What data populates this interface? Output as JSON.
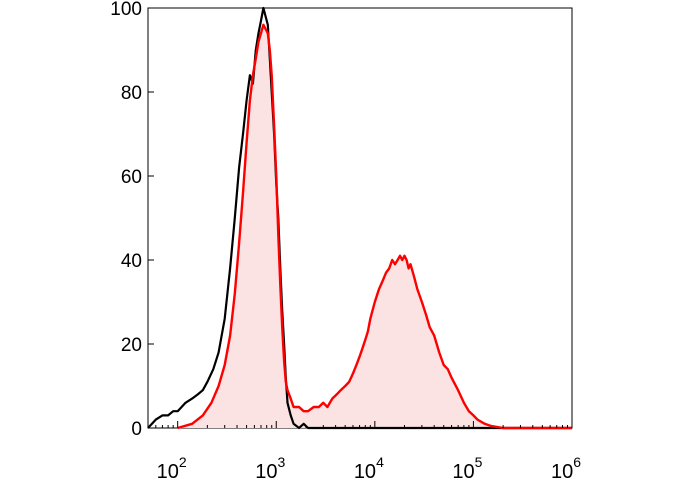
{
  "chart_data": {
    "type": "area",
    "title": "",
    "xlabel": "",
    "ylabel": "",
    "xscale": "log",
    "xlim": [
      50,
      1000000
    ],
    "ylim": [
      0,
      100
    ],
    "grid": false,
    "legend": "none",
    "y_ticks": [
      {
        "value": 0,
        "label": "0"
      },
      {
        "value": 20,
        "label": "20"
      },
      {
        "value": 40,
        "label": "40"
      },
      {
        "value": 60,
        "label": "60"
      },
      {
        "value": 80,
        "label": "80"
      },
      {
        "value": 100,
        "label": "100"
      }
    ],
    "x_ticks": [
      {
        "value": 100,
        "base": "10",
        "exp": "2"
      },
      {
        "value": 1000,
        "base": "10",
        "exp": "3"
      },
      {
        "value": 10000,
        "base": "10",
        "exp": "4"
      },
      {
        "value": 100000,
        "base": "10",
        "exp": "5"
      },
      {
        "value": 1000000,
        "base": "10",
        "exp": "6"
      }
    ],
    "series": [
      {
        "color": "#000000",
        "fill": null,
        "points": [
          [
            50,
            0
          ],
          [
            60,
            2
          ],
          [
            70,
            3
          ],
          [
            80,
            3
          ],
          [
            90,
            4
          ],
          [
            100,
            4
          ],
          [
            120,
            6
          ],
          [
            140,
            7
          ],
          [
            160,
            8
          ],
          [
            180,
            9
          ],
          [
            200,
            11
          ],
          [
            230,
            14
          ],
          [
            260,
            18
          ],
          [
            300,
            26
          ],
          [
            340,
            38
          ],
          [
            380,
            50
          ],
          [
            420,
            62
          ],
          [
            460,
            70
          ],
          [
            500,
            78
          ],
          [
            540,
            84
          ],
          [
            580,
            82
          ],
          [
            620,
            90
          ],
          [
            660,
            94
          ],
          [
            700,
            97
          ],
          [
            740,
            100
          ],
          [
            780,
            98
          ],
          [
            820,
            96
          ],
          [
            860,
            88
          ],
          [
            900,
            80
          ],
          [
            950,
            70
          ],
          [
            1000,
            58
          ],
          [
            1050,
            50
          ],
          [
            1100,
            38
          ],
          [
            1150,
            28
          ],
          [
            1200,
            20
          ],
          [
            1250,
            12
          ],
          [
            1300,
            6
          ],
          [
            1400,
            3
          ],
          [
            1500,
            1
          ],
          [
            1700,
            0
          ],
          [
            1900,
            1
          ],
          [
            2100,
            0
          ],
          [
            1000000,
            0
          ]
        ]
      },
      {
        "color": "#ff0000",
        "fill": "#fbe3e3",
        "points": [
          [
            100,
            0
          ],
          [
            140,
            1
          ],
          [
            180,
            3
          ],
          [
            220,
            6
          ],
          [
            260,
            10
          ],
          [
            300,
            15
          ],
          [
            340,
            22
          ],
          [
            380,
            32
          ],
          [
            420,
            44
          ],
          [
            460,
            56
          ],
          [
            500,
            68
          ],
          [
            540,
            78
          ],
          [
            580,
            84
          ],
          [
            620,
            88
          ],
          [
            660,
            92
          ],
          [
            700,
            94
          ],
          [
            740,
            96
          ],
          [
            780,
            95
          ],
          [
            820,
            94
          ],
          [
            860,
            90
          ],
          [
            900,
            84
          ],
          [
            950,
            72
          ],
          [
            1000,
            60
          ],
          [
            1050,
            46
          ],
          [
            1100,
            34
          ],
          [
            1150,
            24
          ],
          [
            1200,
            16
          ],
          [
            1250,
            11
          ],
          [
            1300,
            9
          ],
          [
            1400,
            7
          ],
          [
            1500,
            5
          ],
          [
            1700,
            5
          ],
          [
            1900,
            4
          ],
          [
            2100,
            4
          ],
          [
            2400,
            5
          ],
          [
            2700,
            5
          ],
          [
            3000,
            6
          ],
          [
            3300,
            5
          ],
          [
            3700,
            7
          ],
          [
            4100,
            8
          ],
          [
            4500,
            9
          ],
          [
            5000,
            10
          ],
          [
            5500,
            11
          ],
          [
            6000,
            13
          ],
          [
            6500,
            15
          ],
          [
            7000,
            17
          ],
          [
            7500,
            19
          ],
          [
            8000,
            21
          ],
          [
            8500,
            23
          ],
          [
            9000,
            26
          ],
          [
            10000,
            30
          ],
          [
            11000,
            33
          ],
          [
            12000,
            35
          ],
          [
            13000,
            37
          ],
          [
            14000,
            38
          ],
          [
            15000,
            40
          ],
          [
            16000,
            39
          ],
          [
            17000,
            40
          ],
          [
            18000,
            41
          ],
          [
            19000,
            40
          ],
          [
            20000,
            41
          ],
          [
            21000,
            40
          ],
          [
            22000,
            38
          ],
          [
            23000,
            39
          ],
          [
            25000,
            36
          ],
          [
            27000,
            33
          ],
          [
            30000,
            30
          ],
          [
            33000,
            27
          ],
          [
            36000,
            24
          ],
          [
            40000,
            22
          ],
          [
            45000,
            18
          ],
          [
            50000,
            15
          ],
          [
            55000,
            14
          ],
          [
            60000,
            12
          ],
          [
            70000,
            9
          ],
          [
            80000,
            6
          ],
          [
            90000,
            4
          ],
          [
            100000,
            3
          ],
          [
            110000,
            2
          ],
          [
            130000,
            1
          ],
          [
            150000,
            0.5
          ],
          [
            200000,
            0
          ],
          [
            1000000,
            0
          ]
        ]
      }
    ]
  }
}
